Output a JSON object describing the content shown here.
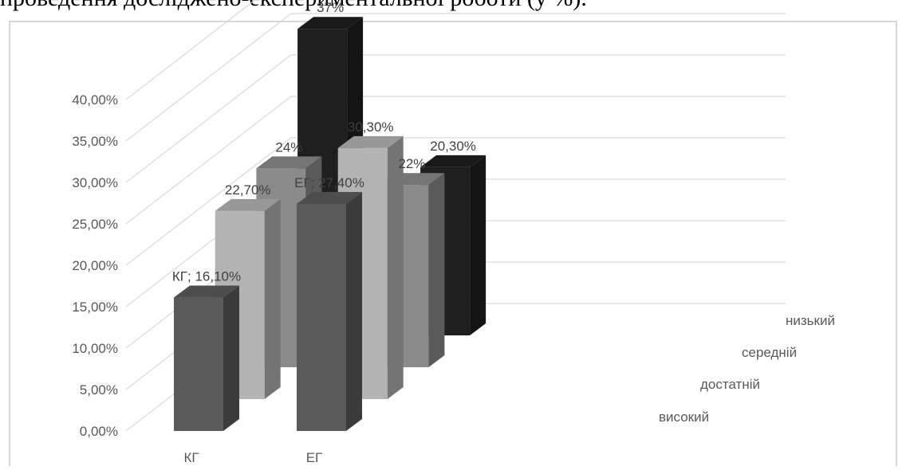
{
  "caption_text": "проведення досліджено-експериментальної роботи (у %).",
  "chart_data": {
    "type": "bar",
    "categories": [
      "КГ",
      "ЕГ"
    ],
    "series": [
      {
        "name": "високий",
        "values": [
          16.1,
          27.4
        ],
        "labels": [
          "КГ; 16,10%",
          "ЕГ; 27,40%"
        ],
        "color": "#5a5a5a"
      },
      {
        "name": "достатній",
        "values": [
          22.7,
          30.3
        ],
        "labels": [
          "22,70%",
          "30,30%"
        ],
        "color": "#b3b3b3"
      },
      {
        "name": "середній",
        "values": [
          24,
          22
        ],
        "labels": [
          "24%",
          "22%"
        ],
        "color": "#8a8a8a"
      },
      {
        "name": "низький",
        "values": [
          37,
          20.3
        ],
        "labels": [
          "37%",
          "20,30%"
        ],
        "color": "#1f1f1f"
      }
    ],
    "y_ticks": [
      "0,00%",
      "5,00%",
      "10,00%",
      "15,00%",
      "20,00%",
      "25,00%",
      "30,00%",
      "35,00%",
      "40,00%"
    ],
    "ylim": [
      0,
      40
    ],
    "grid": true,
    "title": "",
    "xlabel": "",
    "ylabel": ""
  }
}
